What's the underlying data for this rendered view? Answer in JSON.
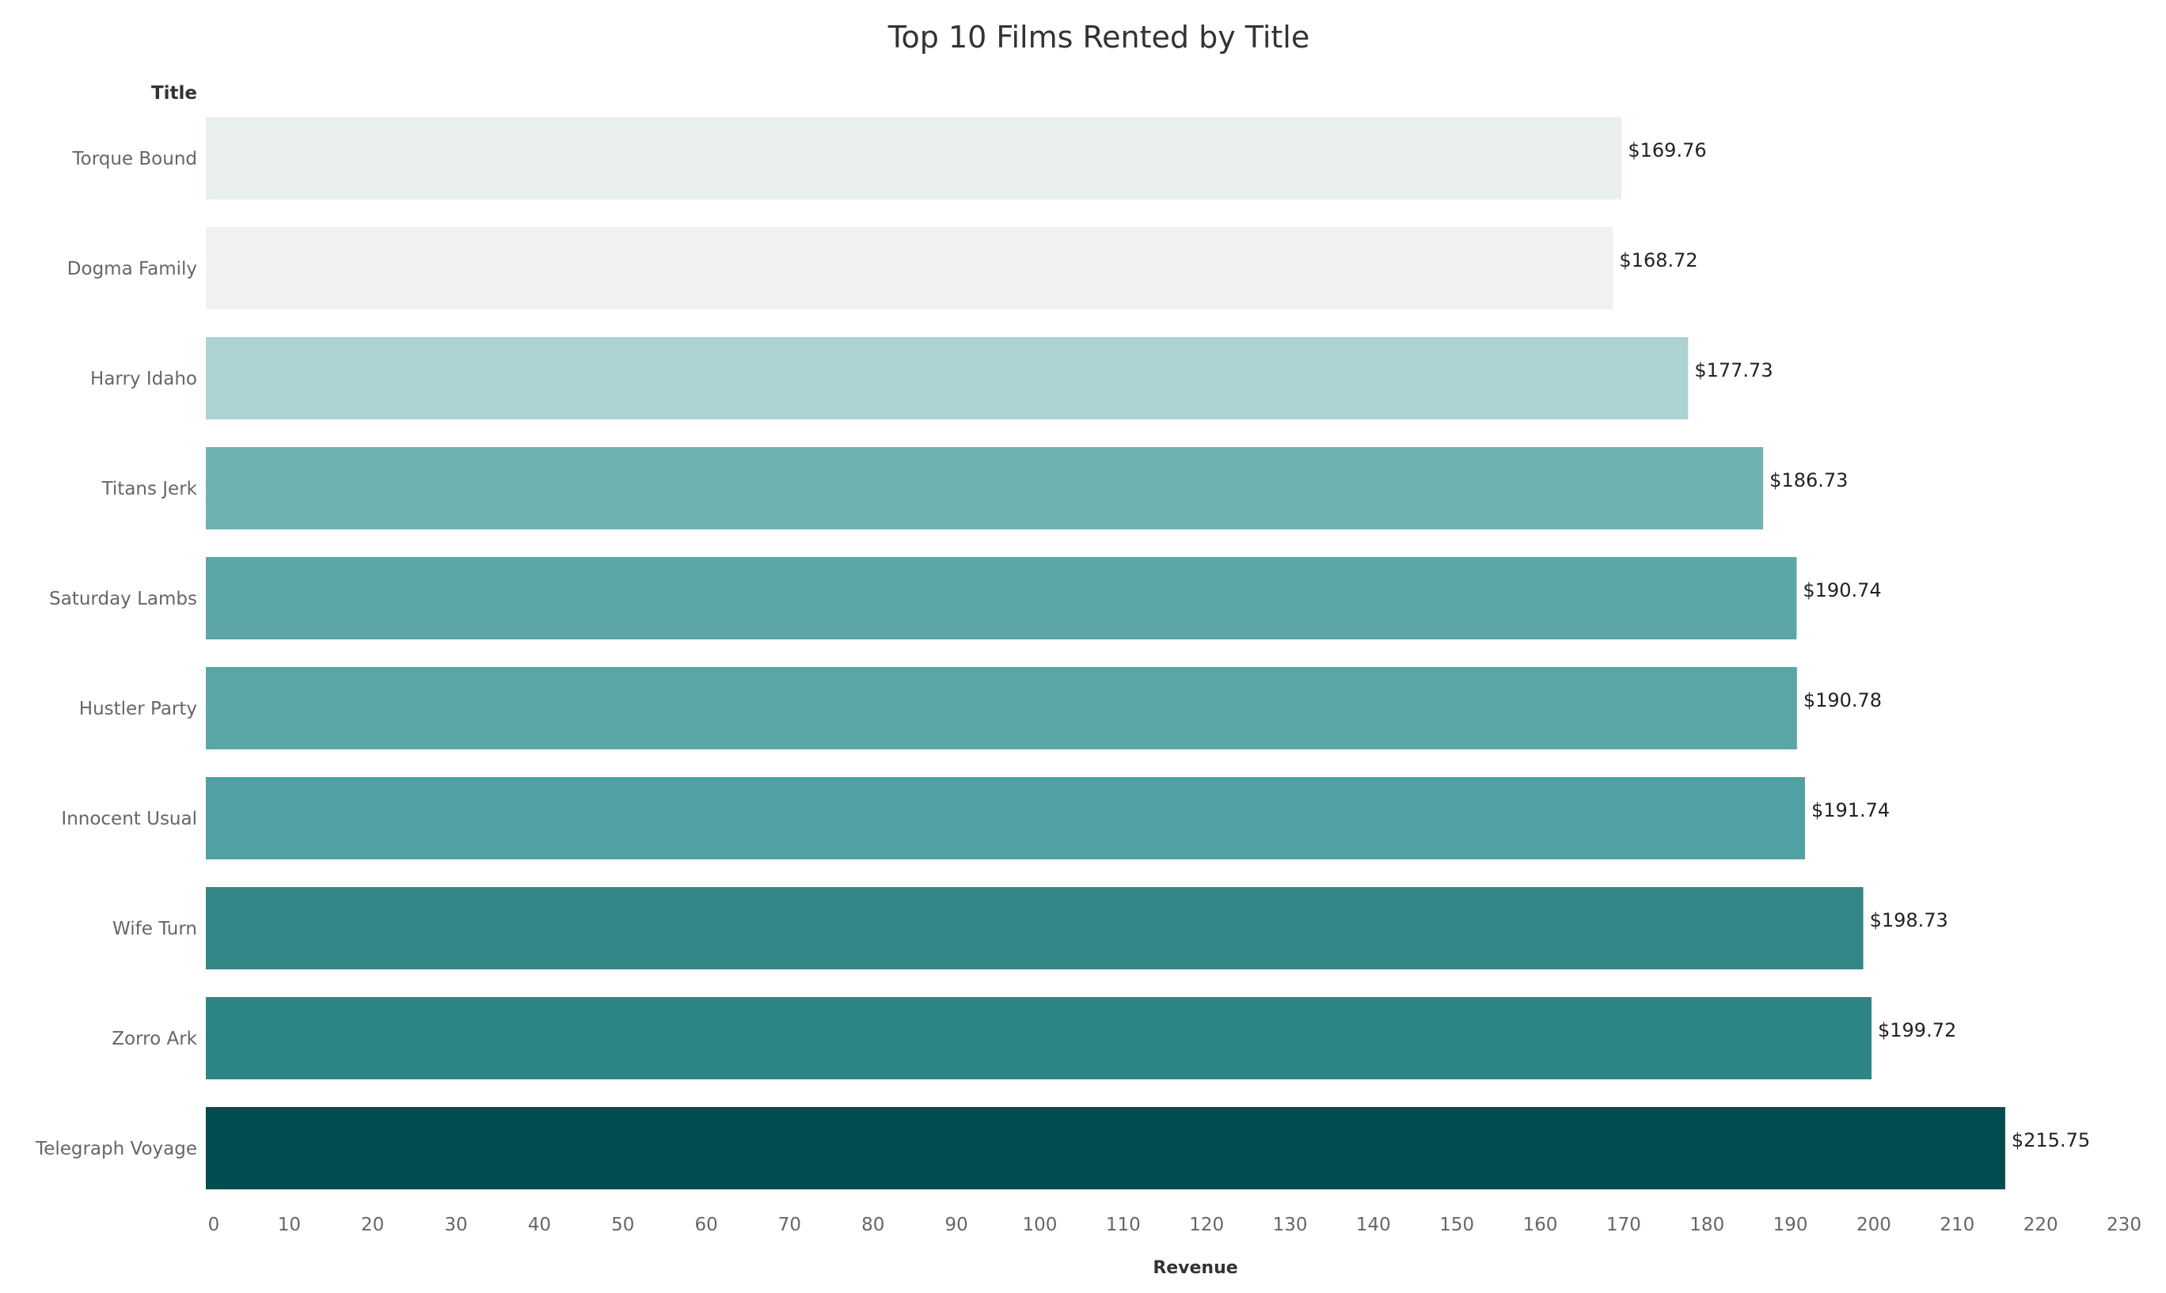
{
  "chart_data": {
    "type": "bar",
    "orientation": "horizontal",
    "title": "Top 10 Films Rented by Title",
    "row_header": "Title",
    "xlabel": "Revenue",
    "xlim": [
      0,
      230
    ],
    "xticks": [
      0,
      10,
      20,
      30,
      40,
      50,
      60,
      70,
      80,
      90,
      100,
      110,
      120,
      130,
      140,
      150,
      160,
      170,
      180,
      190,
      200,
      210,
      220,
      230
    ],
    "grid": false,
    "legend": "none",
    "categories": [
      "Torque Bound",
      "Dogma Family",
      "Harry Idaho",
      "Titans Jerk",
      "Saturday Lambs",
      "Hustler Party",
      "Innocent Usual",
      "Wife Turn",
      "Zorro Ark",
      "Telegraph Voyage"
    ],
    "values": [
      169.76,
      168.72,
      177.73,
      186.73,
      190.74,
      190.78,
      191.74,
      198.73,
      199.72,
      215.75
    ],
    "value_labels": [
      "$169.76",
      "$168.72",
      "$177.73",
      "$186.73",
      "$190.74",
      "$190.78",
      "$191.74",
      "$198.73",
      "$199.72",
      "$215.75"
    ],
    "colors": [
      "#e9efef",
      "#f1f1f1",
      "#abd3d3",
      "#6fb2b0",
      "#5ba6a6",
      "#5aa5a6",
      "#52a1a2",
      "#348787",
      "#2e8585",
      "#024d50"
    ]
  }
}
